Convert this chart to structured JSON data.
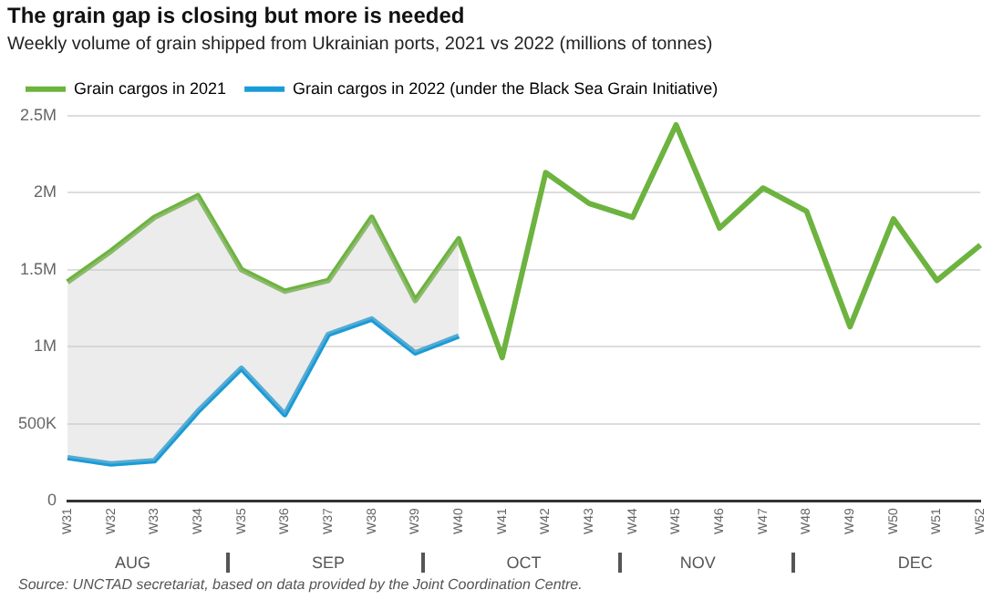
{
  "chart_data": {
    "type": "line",
    "title": "The grain gap is closing but more is needed",
    "subtitle": "Weekly volume of grain shipped from Ukrainian ports, 2021 vs 2022 (millions of tonnes)",
    "categories": [
      "W31",
      "W32",
      "W33",
      "W34",
      "W35",
      "W36",
      "W37",
      "W38",
      "W39",
      "W40",
      "W41",
      "W42",
      "W43",
      "W44",
      "W45",
      "W46",
      "W47",
      "W48",
      "W49",
      "W50",
      "W51",
      "W52"
    ],
    "series": [
      {
        "name": "Grain cargos in 2021",
        "color": "#6db33f",
        "values": [
          1420000,
          1620000,
          1840000,
          1980000,
          1500000,
          1360000,
          1430000,
          1840000,
          1300000,
          1700000,
          930000,
          2130000,
          1930000,
          1840000,
          2440000,
          1770000,
          2030000,
          1880000,
          1130000,
          1830000,
          1430000,
          1660000
        ]
      },
      {
        "name": "Grain cargos in 2022 (under the Black Sea Grain Initiative)",
        "color": "#1a9bd7",
        "values": [
          280000,
          240000,
          260000,
          580000,
          860000,
          560000,
          1080000,
          1180000,
          960000,
          1070000,
          null,
          null,
          null,
          null,
          null,
          null,
          null,
          null,
          null,
          null,
          null,
          null
        ],
        "lower": [
          280000,
          240000,
          260000,
          580000,
          860000,
          560000,
          1080000,
          1180000,
          960000,
          1070000,
          null,
          null,
          null,
          null,
          null,
          null,
          null,
          null,
          null,
          null,
          null,
          null
        ],
        "upper": [
          1420000,
          1620000,
          1840000,
          1980000,
          1500000,
          1360000,
          1430000,
          1840000,
          1300000,
          1700000,
          null,
          null,
          null,
          null,
          null,
          null,
          null,
          null,
          null,
          null,
          null,
          null
        ]
      }
    ],
    "ylim": [
      0,
      2500000
    ],
    "yticks": [
      {
        "value": 0,
        "label": "0"
      },
      {
        "value": 500000,
        "label": "500K"
      },
      {
        "value": 1000000,
        "label": "1M"
      },
      {
        "value": 1500000,
        "label": "1.5M"
      },
      {
        "value": 2000000,
        "label": "2M"
      },
      {
        "value": 2500000,
        "label": "2.5M"
      }
    ],
    "grid": "y",
    "legend": "top left",
    "marker": "none",
    "line_style": "solid",
    "annotations": [
      "AUG",
      "SEP",
      "OCT",
      "NOV",
      "DEC",
      "Source: UNCTAD secretariat, based on data provided by the Joint Coordination Centre."
    ]
  }
}
